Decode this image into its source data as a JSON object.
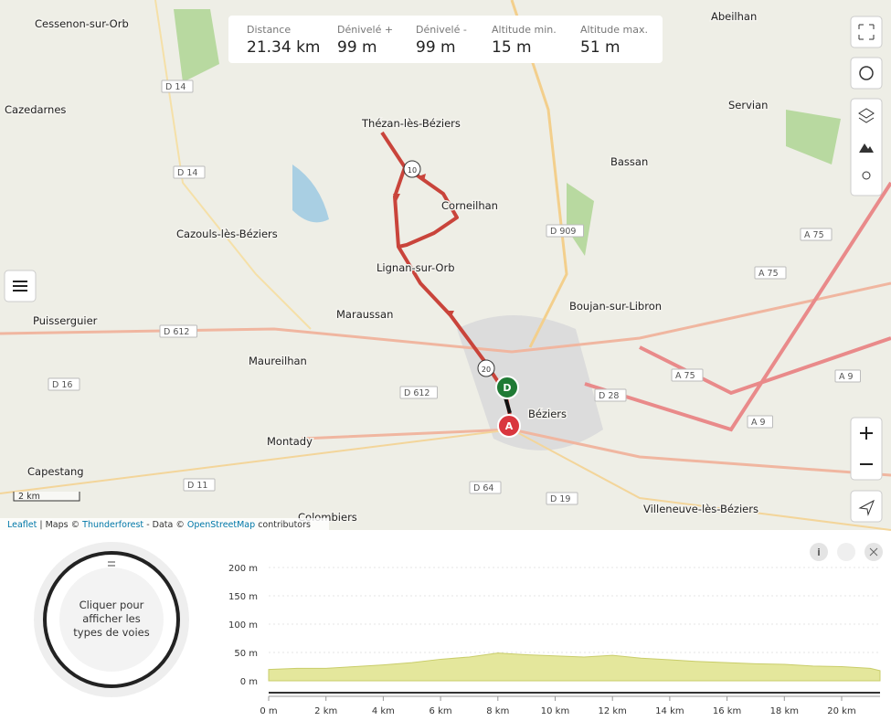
{
  "stats": [
    {
      "label": "Distance",
      "value": "21.34 km"
    },
    {
      "label": "Dénivelé +",
      "value": "99 m"
    },
    {
      "label": "Dénivelé -",
      "value": "99 m"
    },
    {
      "label": "Altitude min.",
      "value": "15 m"
    },
    {
      "label": "Altitude max.",
      "value": "51 m"
    }
  ],
  "map": {
    "places": [
      "Cessenon-sur-Orb",
      "Abeilhan",
      "Cazedarnes",
      "Servian",
      "Thézan-lès-Béziers",
      "Bassan",
      "Corneilhan",
      "Cazouls-lès-Béziers",
      "Lignan-sur-Orb",
      "Boujan-sur-Libron",
      "Maraussan",
      "Puisserguier",
      "Maureilhan",
      "Béziers",
      "Montady",
      "Capestang",
      "Colombiers",
      "Villeneuve-lès-Béziers"
    ],
    "roads": [
      "D 14",
      "D 14",
      "D 909",
      "A 75",
      "A 75",
      "D 612",
      "A 75",
      "A 9",
      "D 16",
      "D 612",
      "D 28",
      "A 9",
      "D 11",
      "D 64",
      "D 19"
    ],
    "route_markers": [
      "10",
      "20"
    ],
    "start": "D",
    "end": "A",
    "scale": "2 km",
    "attribution": [
      "Leaflet",
      " | Maps © ",
      "Thunderforest",
      " - Data © ",
      "OpenStreetMap",
      " contributors"
    ]
  },
  "road_types_widget": [
    "Cliquer pour",
    "afficher les",
    "types de voies"
  ],
  "chart_data": {
    "type": "area",
    "color": "#e4e79c",
    "x": [
      0,
      1,
      2,
      3,
      4,
      5,
      6,
      7,
      8,
      9,
      10,
      11,
      12,
      13,
      14,
      15,
      16,
      17,
      18,
      19,
      20,
      21,
      21.34
    ],
    "values": [
      20,
      22,
      22,
      25,
      28,
      32,
      38,
      42,
      49,
      46,
      44,
      42,
      45,
      40,
      37,
      34,
      32,
      30,
      29,
      26,
      25,
      22,
      18
    ],
    "xlim": [
      0,
      21.34
    ],
    "ylim": [
      0,
      200
    ],
    "xticks": [
      {
        "value": 0,
        "label": "0 m"
      },
      {
        "value": 2,
        "label": "2 km"
      },
      {
        "value": 4,
        "label": "4 km"
      },
      {
        "value": 6,
        "label": "6 km"
      },
      {
        "value": 8,
        "label": "8 km"
      },
      {
        "value": 10,
        "label": "10 km"
      },
      {
        "value": 12,
        "label": "12 km"
      },
      {
        "value": 14,
        "label": "14 km"
      },
      {
        "value": 16,
        "label": "16 km"
      },
      {
        "value": 18,
        "label": "18 km"
      },
      {
        "value": 20,
        "label": "20 km"
      }
    ],
    "yticks": [
      {
        "value": 0,
        "label": "0 m"
      },
      {
        "value": 50,
        "label": "50 m"
      },
      {
        "value": 100,
        "label": "100 m"
      },
      {
        "value": 150,
        "label": "150 m"
      },
      {
        "value": 200,
        "label": "200 m"
      }
    ],
    "grid": true
  }
}
